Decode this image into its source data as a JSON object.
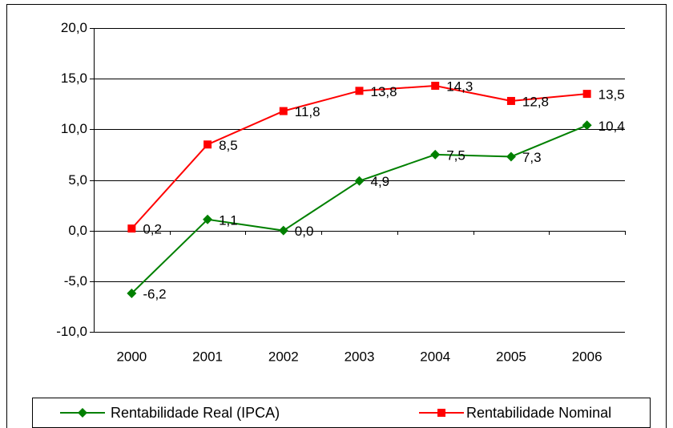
{
  "chart_data": {
    "type": "line",
    "categories": [
      "2000",
      "2001",
      "2002",
      "2003",
      "2004",
      "2005",
      "2006"
    ],
    "series": [
      {
        "name": "Rentabilidade Real (IPCA)",
        "color": "#008000",
        "marker": "diamond",
        "values": [
          -6.2,
          1.1,
          0.0,
          4.9,
          7.5,
          7.3,
          10.4
        ],
        "value_labels": [
          "-6,2",
          "1,1",
          "0,0",
          "4,9",
          "7,5",
          "7,3",
          "10,4"
        ]
      },
      {
        "name": "Rentabilidade Nominal",
        "color": "#ff0000",
        "marker": "square",
        "values": [
          0.2,
          8.5,
          11.8,
          13.8,
          14.3,
          12.8,
          13.5
        ],
        "value_labels": [
          "0,2",
          "8,5",
          "11,8",
          "13,8",
          "14,3",
          "12,8",
          "13,5"
        ]
      }
    ],
    "ylim": [
      -10,
      20
    ],
    "yticks": [
      {
        "value": -10,
        "label": "-10,0"
      },
      {
        "value": -5,
        "label": "-5,0"
      },
      {
        "value": 0,
        "label": "0,0"
      },
      {
        "value": 5,
        "label": "5,0"
      },
      {
        "value": 10,
        "label": "10,0"
      },
      {
        "value": 15,
        "label": "15,0"
      },
      {
        "value": 20,
        "label": "20,0"
      }
    ],
    "grid": true,
    "legend": "bottom"
  }
}
